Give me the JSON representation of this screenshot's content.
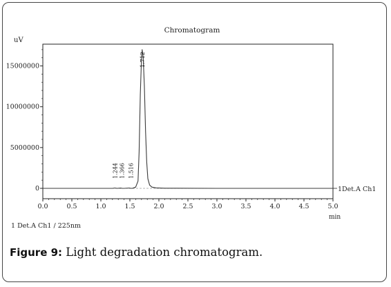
{
  "chart_data": {
    "type": "line",
    "title": "Chromatogram",
    "ylabel": "uV",
    "xlabel": "min",
    "xlim": [
      0.0,
      5.0
    ],
    "ylim": [
      0,
      17500000
    ],
    "x_ticks": [
      "0.0",
      "0.5",
      "1.0",
      "1.5",
      "2.0",
      "2.5",
      "3.0",
      "3.5",
      "4.0",
      "4.5",
      "5.0"
    ],
    "y_ticks": [
      {
        "value": 0,
        "label": "0"
      },
      {
        "value": 5000000,
        "label": "5000000"
      },
      {
        "value": 10000000,
        "label": "10000000"
      },
      {
        "value": 15000000,
        "label": "15000000"
      }
    ],
    "series": [
      {
        "name": "1 Det.A Ch1",
        "x": [
          0.0,
          1.2,
          1.24,
          1.28,
          1.34,
          1.37,
          1.4,
          1.49,
          1.52,
          1.55,
          1.6,
          1.64,
          1.66,
          1.68,
          1.7,
          1.712,
          1.73,
          1.75,
          1.77,
          1.79,
          1.81,
          1.84,
          1.88,
          1.95,
          2.1,
          3.0,
          4.0,
          5.0
        ],
        "y": [
          0,
          0,
          40000,
          0,
          30000,
          0,
          0,
          40000,
          0,
          20000,
          150000,
          900000,
          4500000,
          11500000,
          15800000,
          17000000,
          16000000,
          12500000,
          7000000,
          3200000,
          1200000,
          400000,
          150000,
          60000,
          20000,
          0,
          0,
          0
        ]
      }
    ],
    "peak_labels": [
      "1.244",
      "1.366",
      "1.516",
      "1.712"
    ],
    "trace_label": "1Det.A Ch1",
    "legend_text": "1   Det.A Ch1 / 225nm",
    "grid": false
  },
  "caption": {
    "label": "Figure 9:",
    "text": " Light degradation chromatogram."
  },
  "colors": {
    "trace": "#3a3a3a",
    "axis": "#222222",
    "frame": "#444444"
  }
}
